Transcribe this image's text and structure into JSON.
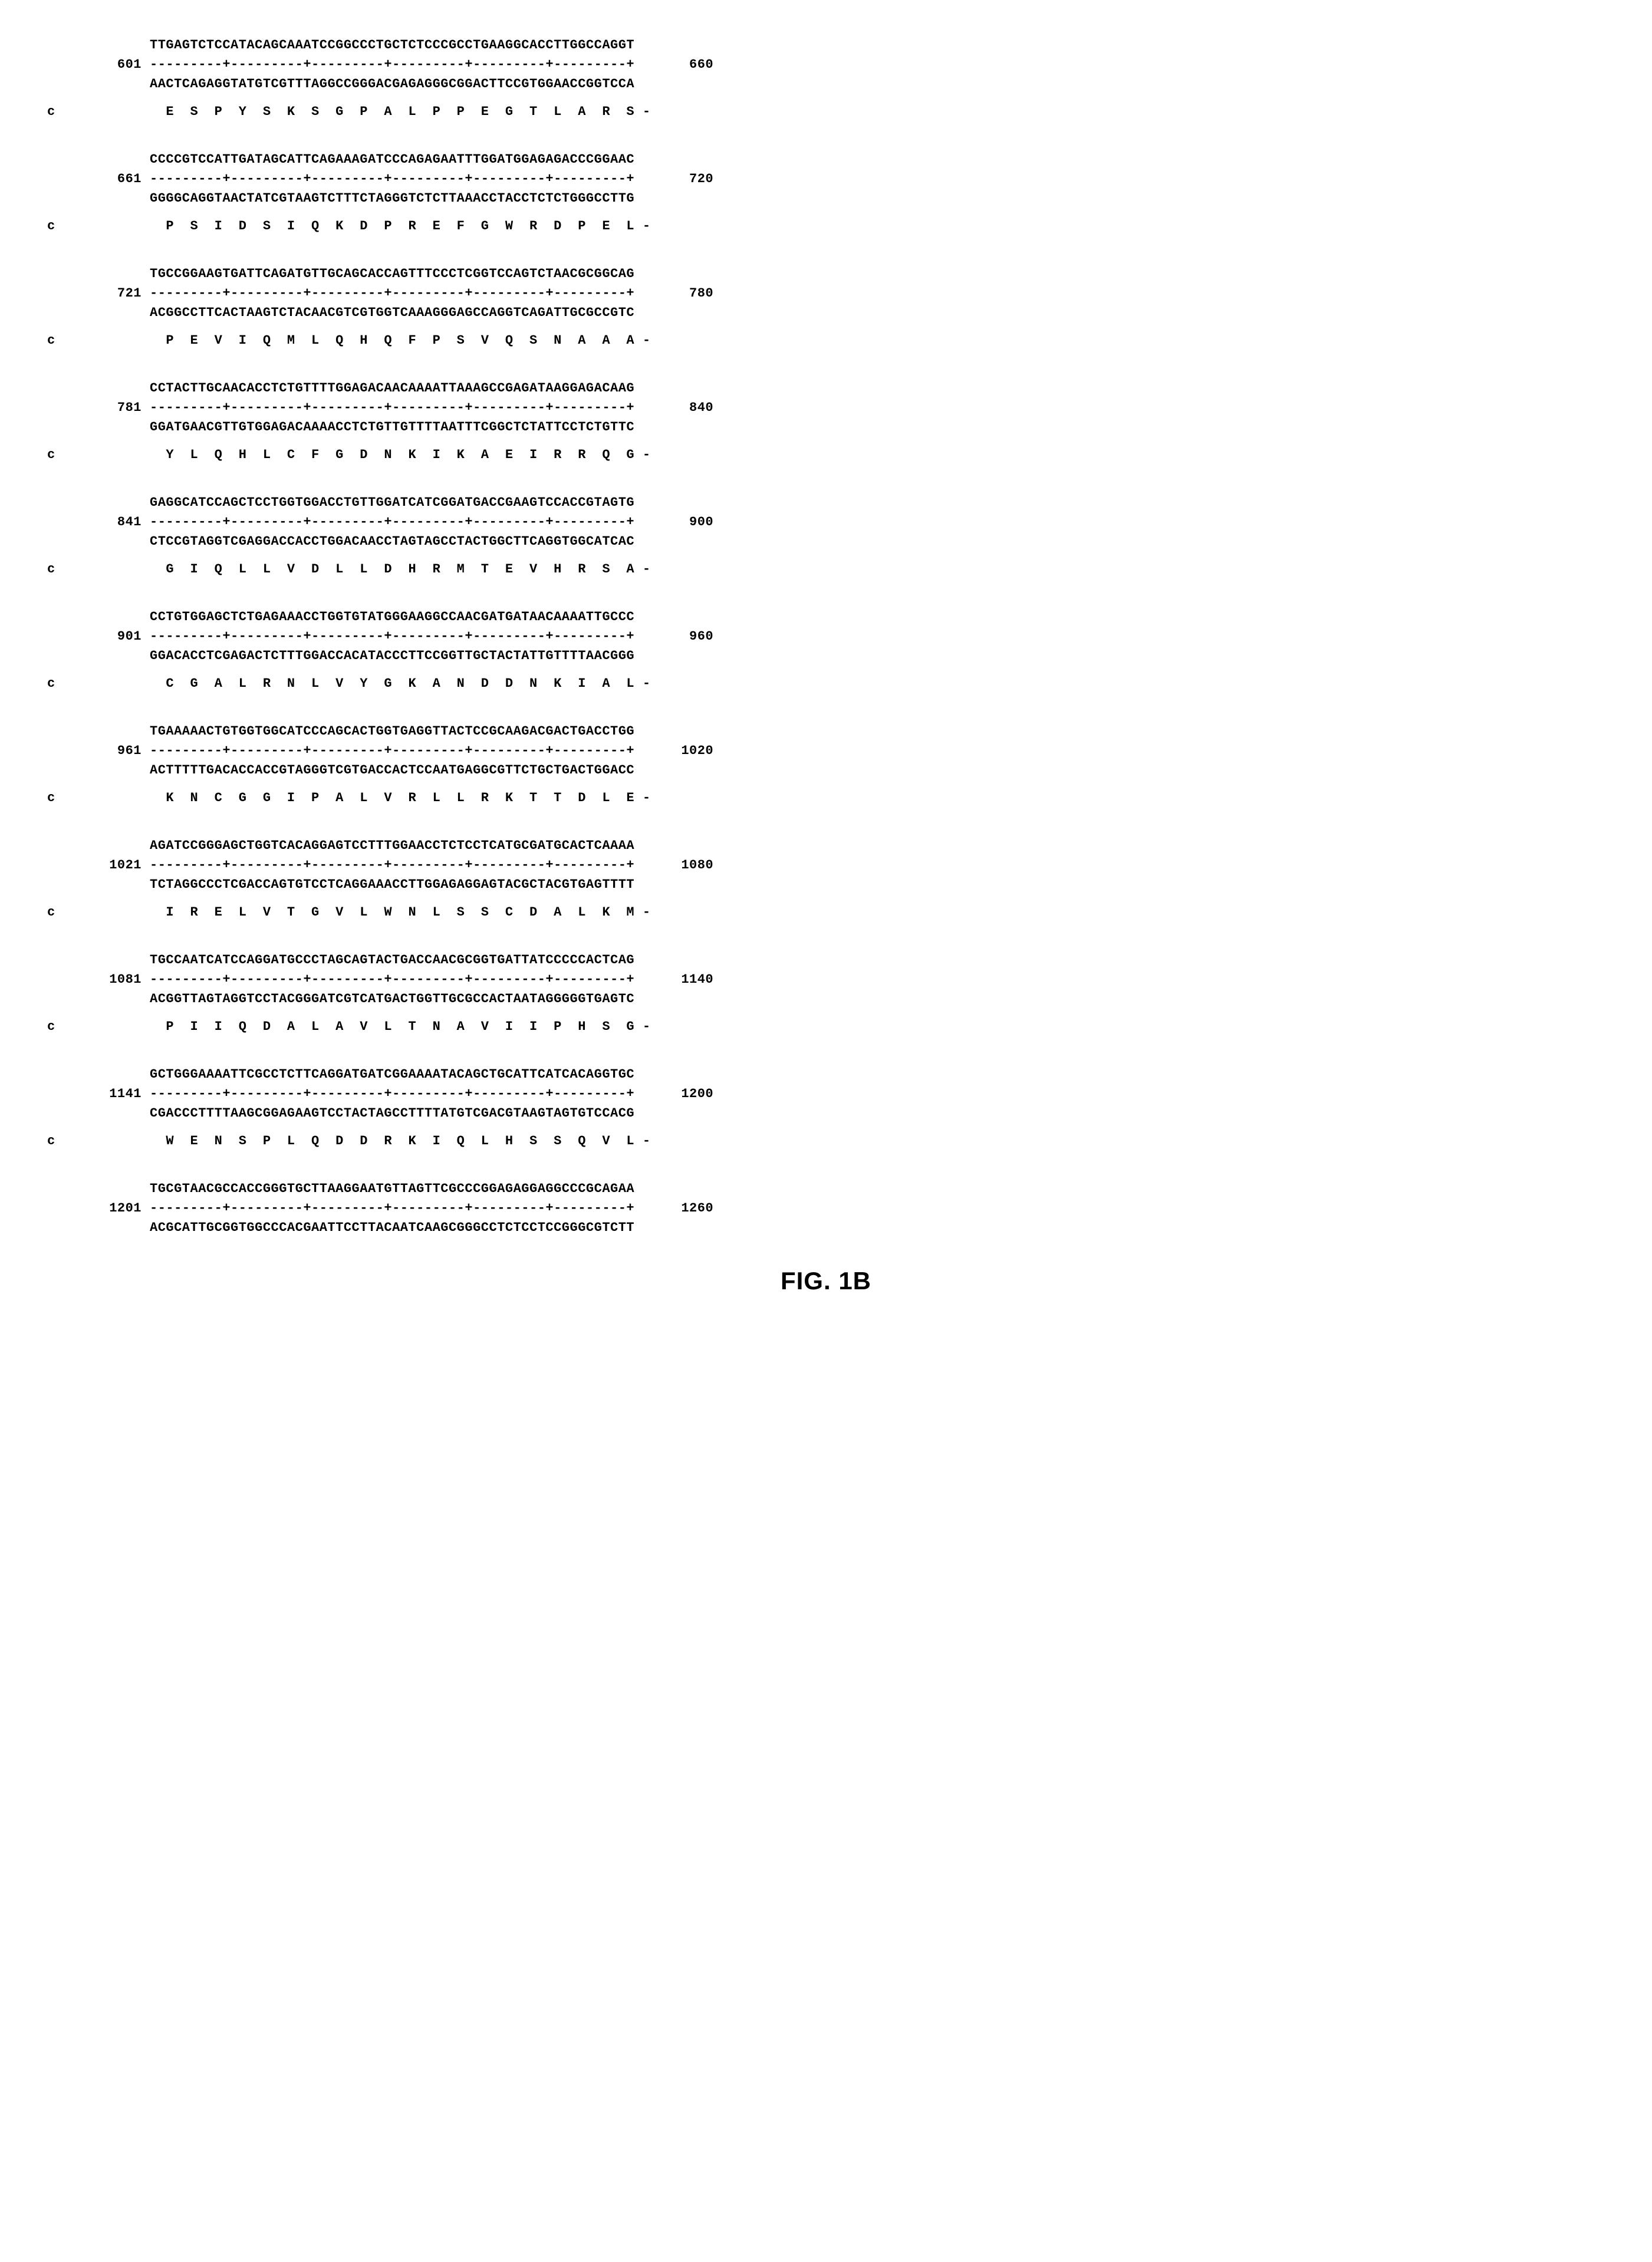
{
  "figure_label": "FIG. 1B",
  "ruler": "---------+---------+---------+---------+---------+---------+",
  "protein_label": "c",
  "aa_suffix": " -",
  "blocks": [
    {
      "start": "601",
      "end": "660",
      "top": "TTGAGTCTCCATACAGCAAATCCGGCCCTGCTCTCCCGCCTGAAGGCACCTTGGCCAGGT",
      "bottom": "AACTCAGAGGTATGTCGTTTAGGCCGGGACGAGAGGGCGGACTTCCGTGGAACCGGTCCA",
      "aa": "  E  S  P  Y  S  K  S  G  P  A  L  P  P  E  G  T  L  A  R  S"
    },
    {
      "start": "661",
      "end": "720",
      "top": "CCCCGTCCATTGATAGCATTCAGAAAGATCCCAGAGAATTTGGATGGAGAGACCCGGAAC",
      "bottom": "GGGGCAGGTAACTATCGTAAGTCTTTCTAGGGTCTCTTAAACCTACCTCTCTGGGCCTTG",
      "aa": "  P  S  I  D  S  I  Q  K  D  P  R  E  F  G  W  R  D  P  E  L"
    },
    {
      "start": "721",
      "end": "780",
      "top": "TGCCGGAAGTGATTCAGATGTTGCAGCACCAGTTTCCCTCGGTCCAGTCTAACGCGGCAG",
      "bottom": "ACGGCCTTCACTAAGTCTACAACGTCGTGGTCAAAGGGAGCCAGGTCAGATTGCGCCGTC",
      "aa": "  P  E  V  I  Q  M  L  Q  H  Q  F  P  S  V  Q  S  N  A  A  A"
    },
    {
      "start": "781",
      "end": "840",
      "top": "CCTACTTGCAACACCTCTGTTTTGGAGACAACAAAATTAAAGCCGAGATAAGGAGACAAG",
      "bottom": "GGATGAACGTTGTGGAGACAAAACCTCTGTTGTTTTAATTTCGGCTCTATTCCTCTGTTC",
      "aa": "  Y  L  Q  H  L  C  F  G  D  N  K  I  K  A  E  I  R  R  Q  G"
    },
    {
      "start": "841",
      "end": "900",
      "top": "GAGGCATCCAGCTCCTGGTGGACCTGTTGGATCATCGGATGACCGAAGTCCACCGTAGTG",
      "bottom": "CTCCGTAGGTCGAGGACCACCTGGACAACCTAGTAGCCTACTGGCTTCAGGTGGCATCAC",
      "aa": "  G  I  Q  L  L  V  D  L  L  D  H  R  M  T  E  V  H  R  S  A"
    },
    {
      "start": "901",
      "end": "960",
      "top": "CCTGTGGAGCTCTGAGAAACCTGGTGTATGGGAAGGCCAACGATGATAACAAAATTGCCC",
      "bottom": "GGACACCTCGAGACTCTTTGGACCACATACCCTTCCGGTTGCTACTATTGTTTTAACGGG",
      "aa": "  C  G  A  L  R  N  L  V  Y  G  K  A  N  D  D  N  K  I  A  L"
    },
    {
      "start": "961",
      "end": "1020",
      "top": "TGAAAAACTGTGGTGGCATCCCAGCACTGGTGAGGTTACTCCGCAAGACGACTGACCTGG",
      "bottom": "ACTTTTTGACACCACCGTAGGGTCGTGACCACTCCAATGAGGCGTTCTGCTGACTGGACC",
      "aa": "  K  N  C  G  G  I  P  A  L  V  R  L  L  R  K  T  T  D  L  E"
    },
    {
      "start": "1021",
      "end": "1080",
      "top": "AGATCCGGGAGCTGGTCACAGGAGTCCTTTGGAACCTCTCCTCATGCGATGCACTCAAAA",
      "bottom": "TCTAGGCCCTCGACCAGTGTCCTCAGGAAACCTTGGAGAGGAGTACGCTACGTGAGTTTT",
      "aa": "  I  R  E  L  V  T  G  V  L  W  N  L  S  S  C  D  A  L  K  M"
    },
    {
      "start": "1081",
      "end": "1140",
      "top": "TGCCAATCATCCAGGATGCCCTAGCAGTACTGACCAACGCGGTGATTATCCCCCACTCAG",
      "bottom": "ACGGTTAGTAGGTCCTACGGGATCGTCATGACTGGTTGCGCCACTAATAGGGGGTGAGTC",
      "aa": "  P  I  I  Q  D  A  L  A  V  L  T  N  A  V  I  I  P  H  S  G"
    },
    {
      "start": "1141",
      "end": "1200",
      "top": "GCTGGGAAAATTCGCCTCTTCAGGATGATCGGAAAATACAGCTGCATTCATCACAGGTGC",
      "bottom": "CGACCCTTTTAAGCGGAGAAGTCCTACTAGCCTTTTATGTCGACGTAAGTAGTGTCCACG",
      "aa": "  W  E  N  S  P  L  Q  D  D  R  K  I  Q  L  H  S  S  Q  V  L"
    },
    {
      "start": "1201",
      "end": "1260",
      "top": "TGCGTAACGCCACCGGGTGCTTAAGGAATGTTAGTTCGCCCGGAGAGGAGGCCCGCAGAA",
      "bottom": "ACGCATTGCGGTGGCCCACGAATTCCTTACAATCAAGCGGGCCTCTCCTCCGGGCGTCTT",
      "aa": null
    }
  ]
}
